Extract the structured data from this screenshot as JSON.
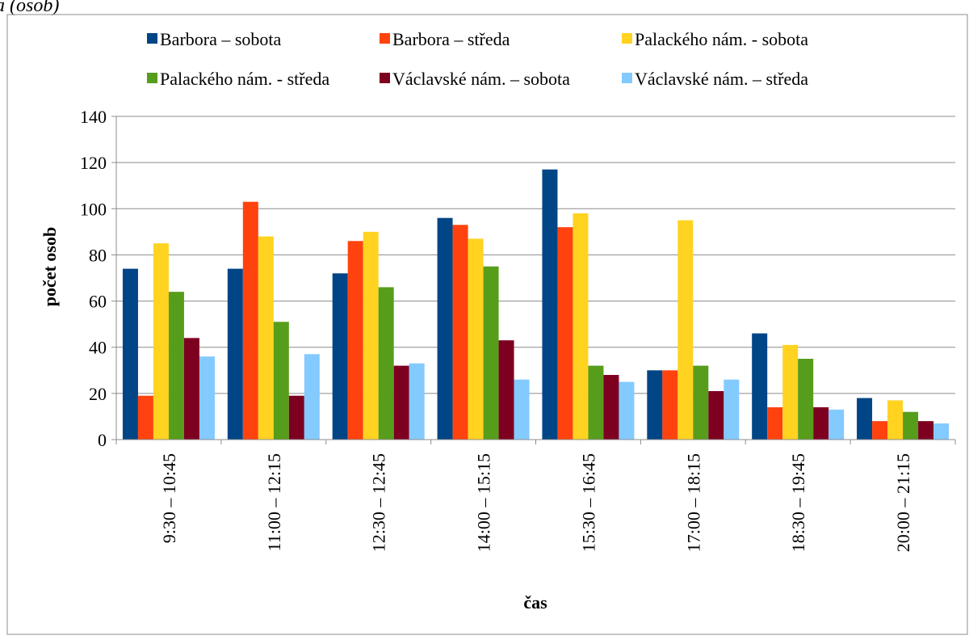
{
  "header_fragment": "a (osob)",
  "chart_data": {
    "type": "bar",
    "xlabel": "čas",
    "ylabel": "počet osob",
    "ylim": [
      0,
      140
    ],
    "yticks": [
      0,
      20,
      40,
      60,
      80,
      100,
      120,
      140
    ],
    "grid": true,
    "legend_position": "top",
    "categories": [
      "9:30 – 10:45",
      "11:00 – 12:15",
      "12:30 – 12:45",
      "14:00 – 15:15",
      "15:30 – 16:45",
      "17:00 – 18:15",
      "18:30 – 19:45",
      "20:00 – 21:15"
    ],
    "series": [
      {
        "name": "Barbora – sobota",
        "color": "#004586",
        "values": [
          74,
          74,
          72,
          96,
          117,
          30,
          46,
          18
        ]
      },
      {
        "name": "Barbora – středa",
        "color": "#ff420e",
        "values": [
          19,
          103,
          86,
          93,
          92,
          30,
          14,
          8
        ]
      },
      {
        "name": "Palackého nám. - sobota",
        "color": "#ffd320",
        "values": [
          85,
          88,
          90,
          87,
          98,
          95,
          41,
          17
        ]
      },
      {
        "name": "Palackého nám. - středa",
        "color": "#579d1c",
        "values": [
          64,
          51,
          66,
          75,
          32,
          32,
          35,
          12
        ]
      },
      {
        "name": "Václavské nám. – sobota",
        "color": "#7e0021",
        "values": [
          44,
          19,
          32,
          43,
          28,
          21,
          14,
          8
        ]
      },
      {
        "name": "Václavské nám. – středa",
        "color": "#83caff",
        "values": [
          36,
          37,
          33,
          26,
          25,
          26,
          13,
          7
        ]
      }
    ]
  }
}
